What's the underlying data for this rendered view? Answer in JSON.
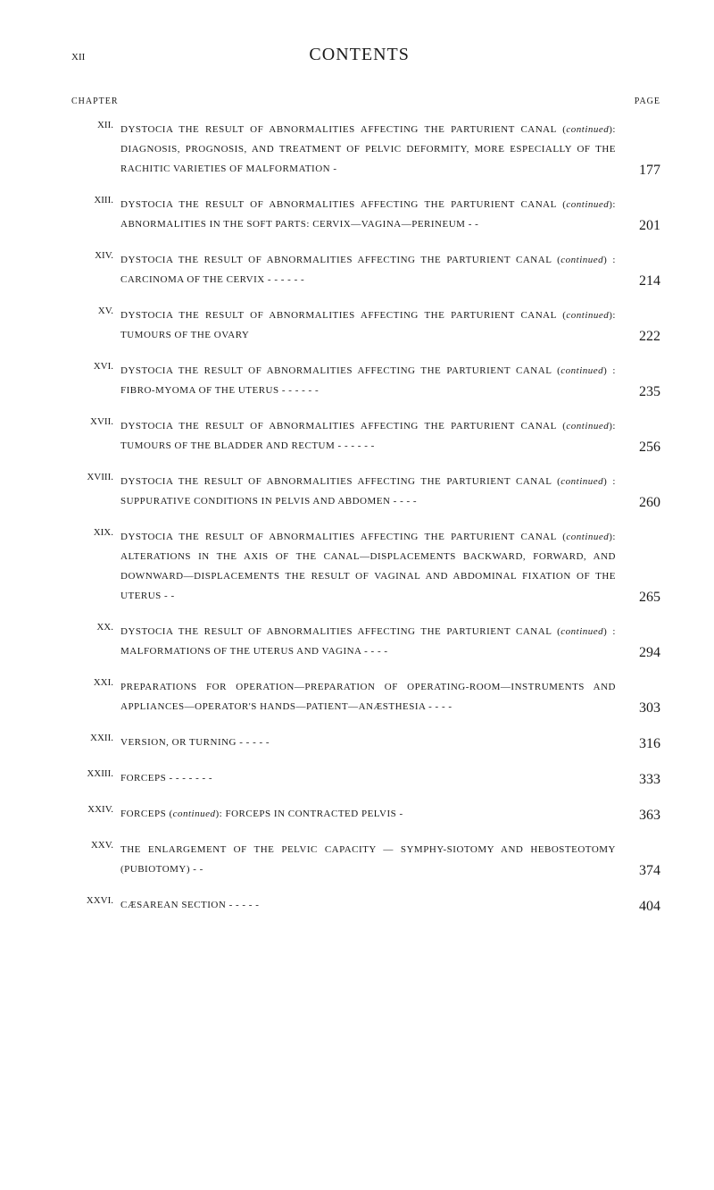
{
  "header": {
    "page_number": "xii",
    "title": "CONTENTS",
    "col_left": "CHAPTER",
    "col_right": "PAGE"
  },
  "entries": [
    {
      "num": "XII.",
      "text": "DYSTOCIA THE RESULT OF ABNORMALITIES AFFECTING THE PARTURIENT CANAL (<em>continued</em>): DIAGNOSIS, PROGNOSIS, AND TREATMENT OF PELVIC DEFORMITY, MORE ESPECIALLY OF THE RACHITIC VARIETIES OF MALFORMATION  -",
      "page": "177"
    },
    {
      "num": "XIII.",
      "text": "DYSTOCIA THE RESULT OF ABNORMALITIES AFFECTING THE PARTURIENT CANAL (<em>continued</em>): ABNORMALITIES IN THE SOFT PARTS: CERVIX—VAGINA—PERINEUM  -  -",
      "page": "201"
    },
    {
      "num": "XIV.",
      "text": "DYSTOCIA THE RESULT OF ABNORMALITIES AFFECTING THE PARTURIENT CANAL (<em>continued</em>) : CARCINOMA OF THE CERVIX  -  -  -  -  -  -",
      "page": "214"
    },
    {
      "num": "XV.",
      "text": "DYSTOCIA THE RESULT OF ABNORMALITIES AFFECTING THE PARTURIENT CANAL (<em>continued</em>): TUMOURS OF THE OVARY",
      "page": "222"
    },
    {
      "num": "XVI.",
      "text": "DYSTOCIA THE RESULT OF ABNORMALITIES AFFECTING THE PARTURIENT CANAL (<em>continued</em>) : FIBRO-MYOMA OF THE UTERUS  -  -  -  -  -  -",
      "page": "235"
    },
    {
      "num": "XVII.",
      "text": "DYSTOCIA THE RESULT OF ABNORMALITIES AFFECTING THE PARTURIENT CANAL (<em>continued</em>): TUMOURS OF THE BLADDER AND RECTUM -  -  -  -  -  -",
      "page": "256"
    },
    {
      "num": "XVIII.",
      "text": "DYSTOCIA THE RESULT OF ABNORMALITIES AFFECTING THE PARTURIENT CANAL (<em>continued</em>) : SUPPURATIVE CONDITIONS IN PELVIS AND ABDOMEN  -  -  -  -",
      "page": "260"
    },
    {
      "num": "XIX.",
      "text": "DYSTOCIA THE RESULT OF ABNORMALITIES AFFECTING THE PARTURIENT CANAL (<em>continued</em>): ALTERATIONS IN THE AXIS OF THE CANAL—DISPLACEMENTS BACKWARD, FORWARD, AND DOWNWARD—DISPLACEMENTS THE RESULT OF VAGINAL AND ABDOMINAL FIXATION OF THE UTERUS  -  -",
      "page": "265"
    },
    {
      "num": "XX.",
      "text": "DYSTOCIA THE RESULT OF ABNORMALITIES AFFECTING THE PARTURIENT CANAL (<em>continued</em>) : MALFORMATIONS OF THE UTERUS AND VAGINA  -  -  -  -",
      "page": "294"
    },
    {
      "num": "XXI.",
      "text": "PREPARATIONS FOR OPERATION—PREPARATION OF OPERATING-ROOM—INSTRUMENTS AND APPLIANCES—OPERATOR'S HANDS—PATIENT—ANÆSTHESIA  -  -  -  -",
      "page": "303"
    },
    {
      "num": "XXII.",
      "text": "VERSION, OR TURNING  -  -  -  -  -",
      "page": "316"
    },
    {
      "num": "XXIII.",
      "text": "FORCEPS -  -  -  -  -  -  -",
      "page": "333"
    },
    {
      "num": "XXIV.",
      "text": "FORCEPS (<em>continued</em>): FORCEPS IN CONTRACTED PELVIS  -",
      "page": "363"
    },
    {
      "num": "XXV.",
      "text": "THE ENLARGEMENT OF THE PELVIC CAPACITY — SYMPHY-SIOTOMY AND HEBOSTEOTOMY (PUBIOTOMY)  -  -",
      "page": "374"
    },
    {
      "num": "XXVI.",
      "text": "CÆSAREAN SECTION  -  -  -  -  -",
      "page": "404"
    }
  ]
}
